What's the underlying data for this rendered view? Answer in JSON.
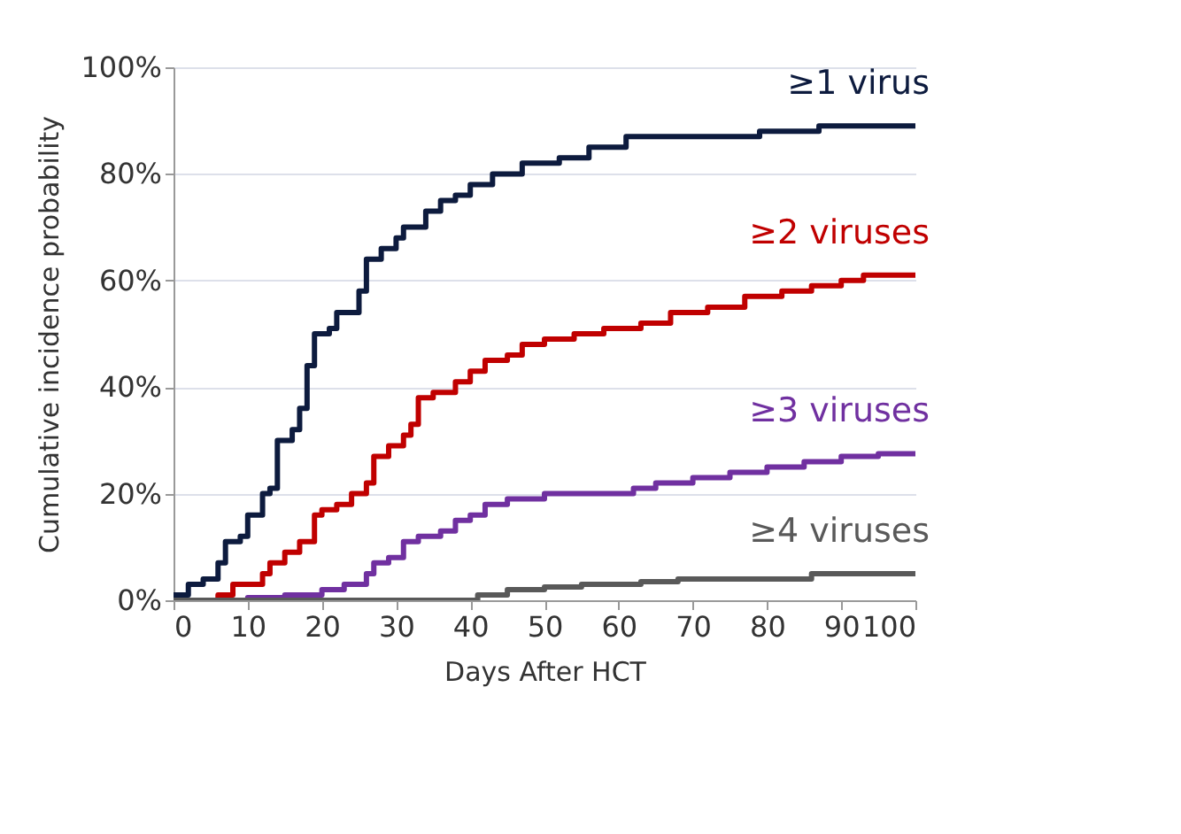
{
  "chart_data": {
    "type": "step",
    "xlabel": "Days After HCT",
    "ylabel": "Cumulative incidence probability",
    "xlim": [
      0,
      100
    ],
    "xticks": [
      0,
      10,
      20,
      30,
      40,
      50,
      60,
      70,
      80,
      90,
      100
    ],
    "ylim": [
      0,
      100
    ],
    "yticks": [
      {
        "value": 0,
        "label": "0%"
      },
      {
        "value": 20,
        "label": "20%"
      },
      {
        "value": 40,
        "label": "40%"
      },
      {
        "value": 60,
        "label": "60%"
      },
      {
        "value": 80,
        "label": "80%"
      },
      {
        "value": 100,
        "label": "100%"
      }
    ],
    "grid": "y",
    "legend": false,
    "line_style": "solid",
    "series": [
      {
        "name": "≥1 virus",
        "color": "#0d1b3e",
        "x": [
          0,
          2,
          4,
          6,
          7,
          9,
          10,
          12,
          13,
          14,
          16,
          17,
          18,
          19,
          21,
          22,
          25,
          26,
          28,
          30,
          31,
          34,
          36,
          38,
          40,
          43,
          47,
          52,
          56,
          61,
          66,
          75,
          79,
          87,
          100
        ],
        "values": [
          1,
          3,
          4,
          7,
          11,
          12,
          16,
          20,
          21,
          30,
          32,
          36,
          44,
          50,
          51,
          54,
          58,
          64,
          66,
          68,
          70,
          73,
          75,
          76,
          78,
          80,
          82,
          83,
          85,
          87,
          87,
          87,
          88,
          89,
          89
        ]
      },
      {
        "name": "≥2 viruses",
        "color": "#c00000",
        "x": [
          0,
          6,
          8,
          11,
          12,
          13,
          15,
          17,
          19,
          20,
          22,
          24,
          26,
          27,
          29,
          31,
          32,
          33,
          35,
          38,
          40,
          42,
          45,
          47,
          50,
          54,
          58,
          63,
          67,
          72,
          77,
          82,
          86,
          90,
          93,
          100
        ],
        "values": [
          0,
          1,
          3,
          3,
          5,
          7,
          9,
          11,
          16,
          17,
          18,
          20,
          22,
          27,
          29,
          31,
          33,
          38,
          39,
          41,
          43,
          45,
          46,
          48,
          49,
          50,
          51,
          52,
          54,
          55,
          57,
          58,
          59,
          60,
          61,
          61
        ]
      },
      {
        "name": "≥3 viruses",
        "color": "#7030a0",
        "x": [
          0,
          10,
          15,
          20,
          23,
          26,
          27,
          29,
          31,
          33,
          36,
          38,
          40,
          42,
          45,
          50,
          60,
          62,
          65,
          70,
          75,
          80,
          85,
          90,
          95,
          100
        ],
        "values": [
          0,
          0.5,
          1,
          2,
          3,
          5,
          7,
          8,
          11,
          12,
          13,
          15,
          16,
          18,
          19,
          20,
          20,
          21,
          22,
          23,
          24,
          25,
          26,
          27,
          27.5,
          27.5
        ]
      },
      {
        "name": "≥4 viruses",
        "color": "#595959",
        "x": [
          0,
          40,
          41,
          45,
          50,
          55,
          63,
          68,
          85,
          86,
          100
        ],
        "values": [
          0,
          0,
          1,
          2,
          2.5,
          3,
          3.5,
          4,
          4,
          5,
          5
        ]
      }
    ]
  }
}
